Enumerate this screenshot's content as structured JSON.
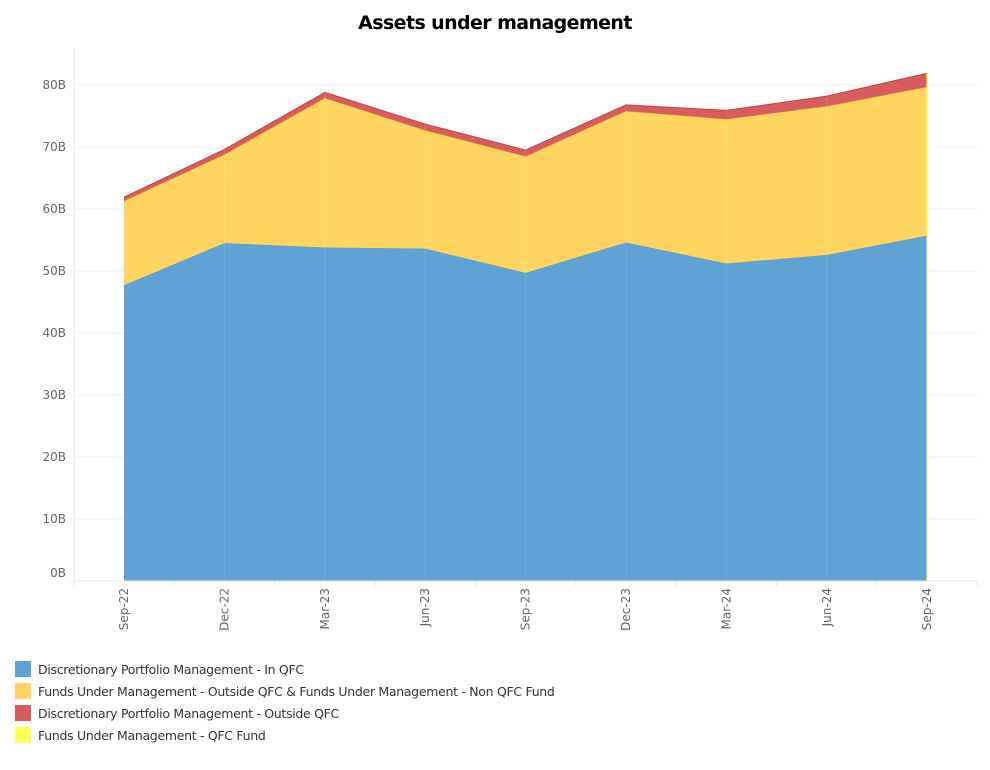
{
  "chart_data": {
    "type": "area",
    "stacked": true,
    "title": "Assets under management",
    "xlabel": "",
    "ylabel": "",
    "categories": [
      "Sep-22",
      "Dec-22",
      "Mar-23",
      "Jun-23",
      "Sep-23",
      "Dec-23",
      "Mar-24",
      "Jun-24",
      "Sep-24"
    ],
    "ylim": [
      0,
      85
    ],
    "yticks": [
      0,
      10,
      20,
      30,
      40,
      50,
      60,
      70,
      80
    ],
    "ytick_labels": [
      "0B",
      "10B",
      "20B",
      "30B",
      "40B",
      "50B",
      "60B",
      "70B",
      "80B"
    ],
    "unit": "B",
    "grid": true,
    "legend_position": "bottom-left",
    "series": [
      {
        "name": "Discretionary Portfolio Management -  In QFC",
        "color": "#5fa2d5",
        "values": [
          47.7,
          54.5,
          53.8,
          53.6,
          49.7,
          54.6,
          51.2,
          52.6,
          55.7
        ]
      },
      {
        "name": "Funds Under Management - Outside QFC & Funds Under Management - Non QFC Fund",
        "color": "#ffd55f",
        "values": [
          13.6,
          14.3,
          24.1,
          19.1,
          18.8,
          21.2,
          23.3,
          24.0,
          24.0
        ]
      },
      {
        "name": "Discretionary Portfolio Management - Outside QFC",
        "color": "#d85c5c",
        "values": [
          0.6,
          0.8,
          0.9,
          1.0,
          1.0,
          1.0,
          1.4,
          1.6,
          2.2
        ]
      },
      {
        "name": "Funds Under Management - QFC Fund",
        "color": "#ffff55",
        "values": [
          0,
          0,
          0,
          0,
          0,
          0,
          0,
          0,
          0.05
        ]
      }
    ]
  }
}
